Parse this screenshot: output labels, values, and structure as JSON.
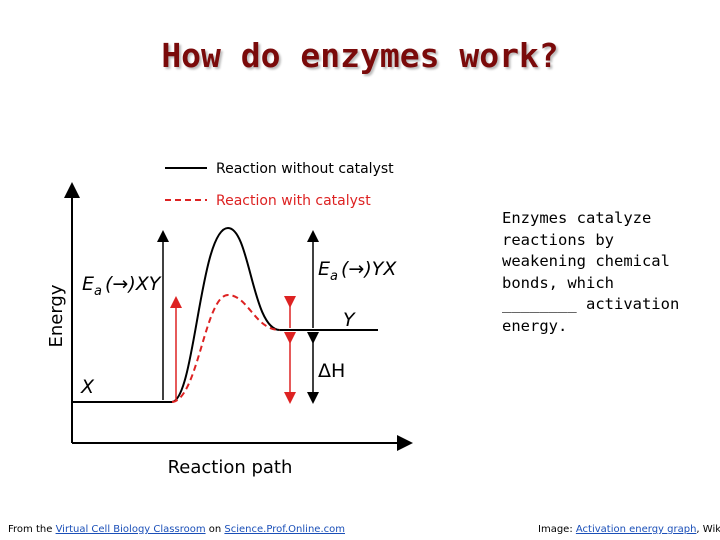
{
  "header": {
    "title": "How do enzymes work?"
  },
  "diagram": {
    "legend": [
      "Reaction without catalyst",
      "Reaction with catalyst"
    ],
    "y_axis_label": "Energy",
    "x_axis_label": "Reaction path",
    "labels": {
      "ea_forward": {
        "symbol": "E",
        "subscript": "a",
        "suffix": "(→)XY"
      },
      "ea_reverse": {
        "symbol": "E",
        "subscript": "a",
        "suffix": "(→)YX"
      },
      "product": "Y",
      "reactant": "X",
      "delta_h": "ΔH"
    }
  },
  "body": {
    "text": "Enzymes catalyze reactions by weakening chemical bonds, which ________ activation energy."
  },
  "footer": {
    "left": {
      "prefix": "From the",
      "link1": "Virtual Cell Biology Classroom",
      "middle": "on",
      "link2": "Science.Prof.Online.com"
    },
    "right": {
      "prefix": "Image:",
      "link": "Activation energy graph",
      "suffix": ", Wiki"
    }
  }
}
